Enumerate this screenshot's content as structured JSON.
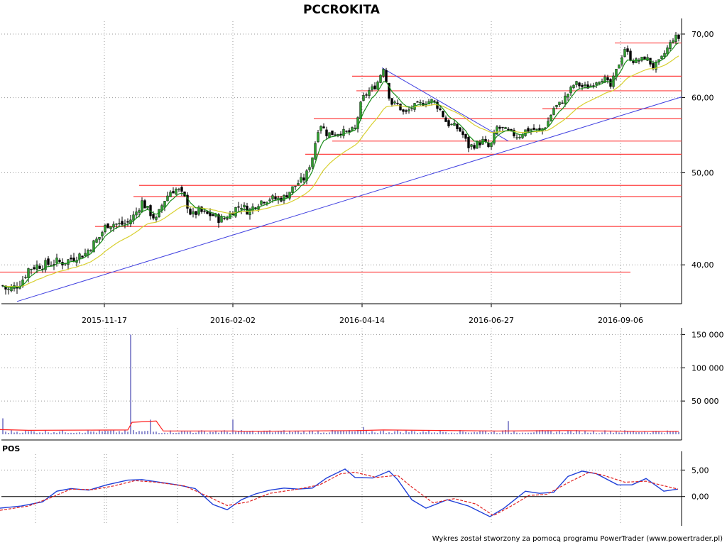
{
  "title": "PCCROKITA",
  "footer": "Wykres został stworzony za pomocą programu PowerTrader (www.powertrader.pl)",
  "colors": {
    "up_candle": "#2e9e2e",
    "down_candle": "#000000",
    "ema_short": "#1a8c1a",
    "ema_long": "#d8d030",
    "support_lines": "#ff4040",
    "trend_lines": "#4040e0",
    "volume_bars": "#2020a0",
    "volume_avg": "#ff2020",
    "pos_line": "#1f3fd8",
    "pos_signal": "#e02020"
  },
  "chart_data": [
    {
      "id": "price",
      "type": "candlestick",
      "title": "PCCROKITA",
      "x_tick_labels": [
        "2015-11-17",
        "2016-02-02",
        "2016-04-14",
        "2016-06-27",
        "2016-09-06"
      ],
      "y_tick_labels": [
        "70,00",
        "60,00",
        "50,00",
        "40,00"
      ],
      "y_ticks": [
        70,
        60,
        50,
        40
      ],
      "y_scale": "log",
      "ylim": [
        36.4,
        72.2
      ],
      "series_close": [
        [
          0,
          38.3
        ],
        [
          10,
          37.6
        ],
        [
          20,
          37.9
        ],
        [
          30,
          38.4
        ],
        [
          40,
          39.6
        ],
        [
          50,
          39.9
        ],
        [
          60,
          40.0
        ],
        [
          70,
          40.1
        ],
        [
          80,
          40.3
        ],
        [
          90,
          40.2
        ],
        [
          100,
          40.6
        ],
        [
          110,
          40.9
        ],
        [
          120,
          41.1
        ],
        [
          130,
          42.0
        ],
        [
          140,
          42.8
        ],
        [
          150,
          44.1
        ],
        [
          160,
          44.2
        ],
        [
          170,
          44.1
        ],
        [
          180,
          44.3
        ],
        [
          190,
          45.2
        ],
        [
          200,
          46.6
        ],
        [
          210,
          45.5
        ],
        [
          220,
          44.6
        ],
        [
          230,
          46.6
        ],
        [
          240,
          47.8
        ],
        [
          250,
          48.1
        ],
        [
          260,
          47.0
        ],
        [
          270,
          45.0
        ],
        [
          280,
          45.6
        ],
        [
          290,
          45.2
        ],
        [
          300,
          45.1
        ],
        [
          310,
          44.6
        ],
        [
          320,
          44.9
        ],
        [
          330,
          45.8
        ],
        [
          340,
          46.2
        ],
        [
          350,
          45.5
        ],
        [
          360,
          46.3
        ],
        [
          370,
          46.8
        ],
        [
          380,
          47.0
        ],
        [
          390,
          46.9
        ],
        [
          400,
          47.1
        ],
        [
          410,
          48.0
        ],
        [
          420,
          48.8
        ],
        [
          430,
          49.4
        ],
        [
          440,
          52.0
        ],
        [
          450,
          56.5
        ],
        [
          460,
          55.0
        ],
        [
          470,
          55.0
        ],
        [
          480,
          55.2
        ],
        [
          490,
          55.1
        ],
        [
          500,
          55.6
        ],
        [
          510,
          59.8
        ],
        [
          520,
          61.0
        ],
        [
          530,
          61.8
        ],
        [
          540,
          64.6
        ],
        [
          550,
          59.2
        ],
        [
          560,
          59.0
        ],
        [
          570,
          57.6
        ],
        [
          580,
          58.6
        ],
        [
          590,
          59.0
        ],
        [
          600,
          59.4
        ],
        [
          610,
          59.6
        ],
        [
          620,
          58.2
        ],
        [
          630,
          56.3
        ],
        [
          640,
          56.0
        ],
        [
          650,
          55.2
        ],
        [
          660,
          53.3
        ],
        [
          670,
          53.5
        ],
        [
          680,
          54.0
        ],
        [
          690,
          53.0
        ],
        [
          700,
          55.8
        ],
        [
          710,
          55.5
        ],
        [
          720,
          55.0
        ],
        [
          730,
          54.6
        ],
        [
          740,
          55.4
        ],
        [
          750,
          55.6
        ],
        [
          760,
          55.3
        ],
        [
          770,
          56.2
        ],
        [
          780,
          58.5
        ],
        [
          790,
          59.2
        ],
        [
          800,
          60.6
        ],
        [
          810,
          62.2
        ],
        [
          820,
          61.6
        ],
        [
          830,
          61.6
        ],
        [
          840,
          62.5
        ],
        [
          850,
          63.0
        ],
        [
          860,
          61.6
        ],
        [
          870,
          64.6
        ],
        [
          880,
          67.6
        ],
        [
          890,
          65.6
        ],
        [
          900,
          65.6
        ],
        [
          910,
          66.2
        ],
        [
          920,
          64.6
        ],
        [
          930,
          65.6
        ],
        [
          940,
          67.6
        ],
        [
          950,
          69.6
        ],
        [
          955,
          69.3
        ]
      ],
      "volatility_band": 0.9,
      "horizontal_levels": [
        {
          "value": 68.5,
          "x_start": 866
        },
        {
          "value": 63.2,
          "x_start": 496
        },
        {
          "value": 61.0,
          "x_start": 502
        },
        {
          "value": 58.4,
          "x_start": 764
        },
        {
          "value": 57.0,
          "x_start": 442
        },
        {
          "value": 54.0,
          "x_start": 468
        },
        {
          "value": 52.3,
          "x_start": 430
        },
        {
          "value": 48.5,
          "x_start": 196
        },
        {
          "value": 47.2,
          "x_start": 188
        },
        {
          "value": 43.9,
          "x_start": 134
        },
        {
          "value": 39.3,
          "x_start": 0,
          "x_end": 888
        }
      ],
      "trend_lines": [
        {
          "from": [
            24,
            36.6
          ],
          "to": [
            960,
            60.1
          ]
        },
        {
          "from": [
            538,
            64.5
          ],
          "to": [
            716,
            54.0
          ]
        }
      ]
    },
    {
      "id": "volume",
      "type": "bar",
      "y_tick_labels": [
        "150 000",
        "100 000",
        "50 000"
      ],
      "y_ticks": [
        150000,
        100000,
        50000
      ],
      "ylim": [
        0,
        160000
      ],
      "spikes": [
        {
          "x": 4,
          "value": 24000
        },
        {
          "x": 184,
          "value": 150000
        },
        {
          "x": 212,
          "value": 22000
        },
        {
          "x": 328,
          "value": 22000
        },
        {
          "x": 446,
          "value": 10000
        },
        {
          "x": 512,
          "value": 11000
        },
        {
          "x": 716,
          "value": 20000
        },
        {
          "x": 946,
          "value": 16000
        }
      ],
      "average": [
        [
          0,
          7000
        ],
        [
          40,
          6000
        ],
        [
          180,
          6500
        ],
        [
          186,
          18000
        ],
        [
          220,
          20000
        ],
        [
          230,
          5000
        ],
        [
          330,
          5000
        ],
        [
          340,
          4500
        ],
        [
          500,
          5500
        ],
        [
          540,
          6500
        ],
        [
          700,
          5000
        ],
        [
          800,
          5500
        ],
        [
          900,
          4500
        ],
        [
          956,
          4500
        ]
      ]
    },
    {
      "id": "pos",
      "type": "line",
      "label": "POS",
      "y_tick_labels": [
        "5,00",
        "0,00"
      ],
      "y_ticks": [
        5,
        0
      ],
      "ylim": [
        -5,
        8
      ],
      "series": [
        {
          "name": "POS",
          "points": [
            [
              0,
              -2.2
            ],
            [
              30,
              -1.8
            ],
            [
              60,
              -1.0
            ],
            [
              80,
              1.0
            ],
            [
              100,
              1.5
            ],
            [
              125,
              1.2
            ],
            [
              150,
              2.2
            ],
            [
              180,
              3.1
            ],
            [
              200,
              3.2
            ],
            [
              220,
              2.8
            ],
            [
              250,
              2.2
            ],
            [
              275,
              1.5
            ],
            [
              300,
              -1.5
            ],
            [
              320,
              -2.5
            ],
            [
              340,
              -0.6
            ],
            [
              360,
              0.5
            ],
            [
              380,
              1.2
            ],
            [
              400,
              1.6
            ],
            [
              420,
              1.4
            ],
            [
              440,
              1.6
            ],
            [
              460,
              3.5
            ],
            [
              486,
              5.2
            ],
            [
              500,
              3.6
            ],
            [
              525,
              3.5
            ],
            [
              548,
              4.8
            ],
            [
              560,
              3.2
            ],
            [
              580,
              -0.6
            ],
            [
              600,
              -2.2
            ],
            [
              630,
              -0.6
            ],
            [
              660,
              -1.8
            ],
            [
              690,
              -3.8
            ],
            [
              710,
              -2.2
            ],
            [
              740,
              1.0
            ],
            [
              760,
              0.6
            ],
            [
              780,
              0.8
            ],
            [
              800,
              3.8
            ],
            [
              820,
              4.8
            ],
            [
              840,
              4.3
            ],
            [
              870,
              2.2
            ],
            [
              890,
              2.2
            ],
            [
              910,
              3.4
            ],
            [
              935,
              1.0
            ],
            [
              955,
              1.4
            ]
          ]
        },
        {
          "name": "Signal",
          "points": [
            [
              0,
              -2.6
            ],
            [
              40,
              -1.8
            ],
            [
              70,
              -0.3
            ],
            [
              100,
              1.4
            ],
            [
              130,
              1.3
            ],
            [
              160,
              2.0
            ],
            [
              190,
              3.0
            ],
            [
              220,
              2.7
            ],
            [
              260,
              2.0
            ],
            [
              290,
              0.2
            ],
            [
              320,
              -1.7
            ],
            [
              350,
              -1.0
            ],
            [
              380,
              0.6
            ],
            [
              420,
              1.4
            ],
            [
              450,
              2.2
            ],
            [
              480,
              4.3
            ],
            [
              500,
              4.6
            ],
            [
              530,
              3.6
            ],
            [
              560,
              4.0
            ],
            [
              580,
              1.8
            ],
            [
              610,
              -1.2
            ],
            [
              640,
              -0.4
            ],
            [
              670,
              -1.4
            ],
            [
              695,
              -3.6
            ],
            [
              720,
              -1.8
            ],
            [
              745,
              0.2
            ],
            [
              770,
              0.4
            ],
            [
              800,
              2.6
            ],
            [
              830,
              4.6
            ],
            [
              850,
              4.0
            ],
            [
              880,
              2.7
            ],
            [
              910,
              2.9
            ],
            [
              930,
              2.2
            ],
            [
              955,
              1.4
            ]
          ]
        }
      ]
    }
  ]
}
